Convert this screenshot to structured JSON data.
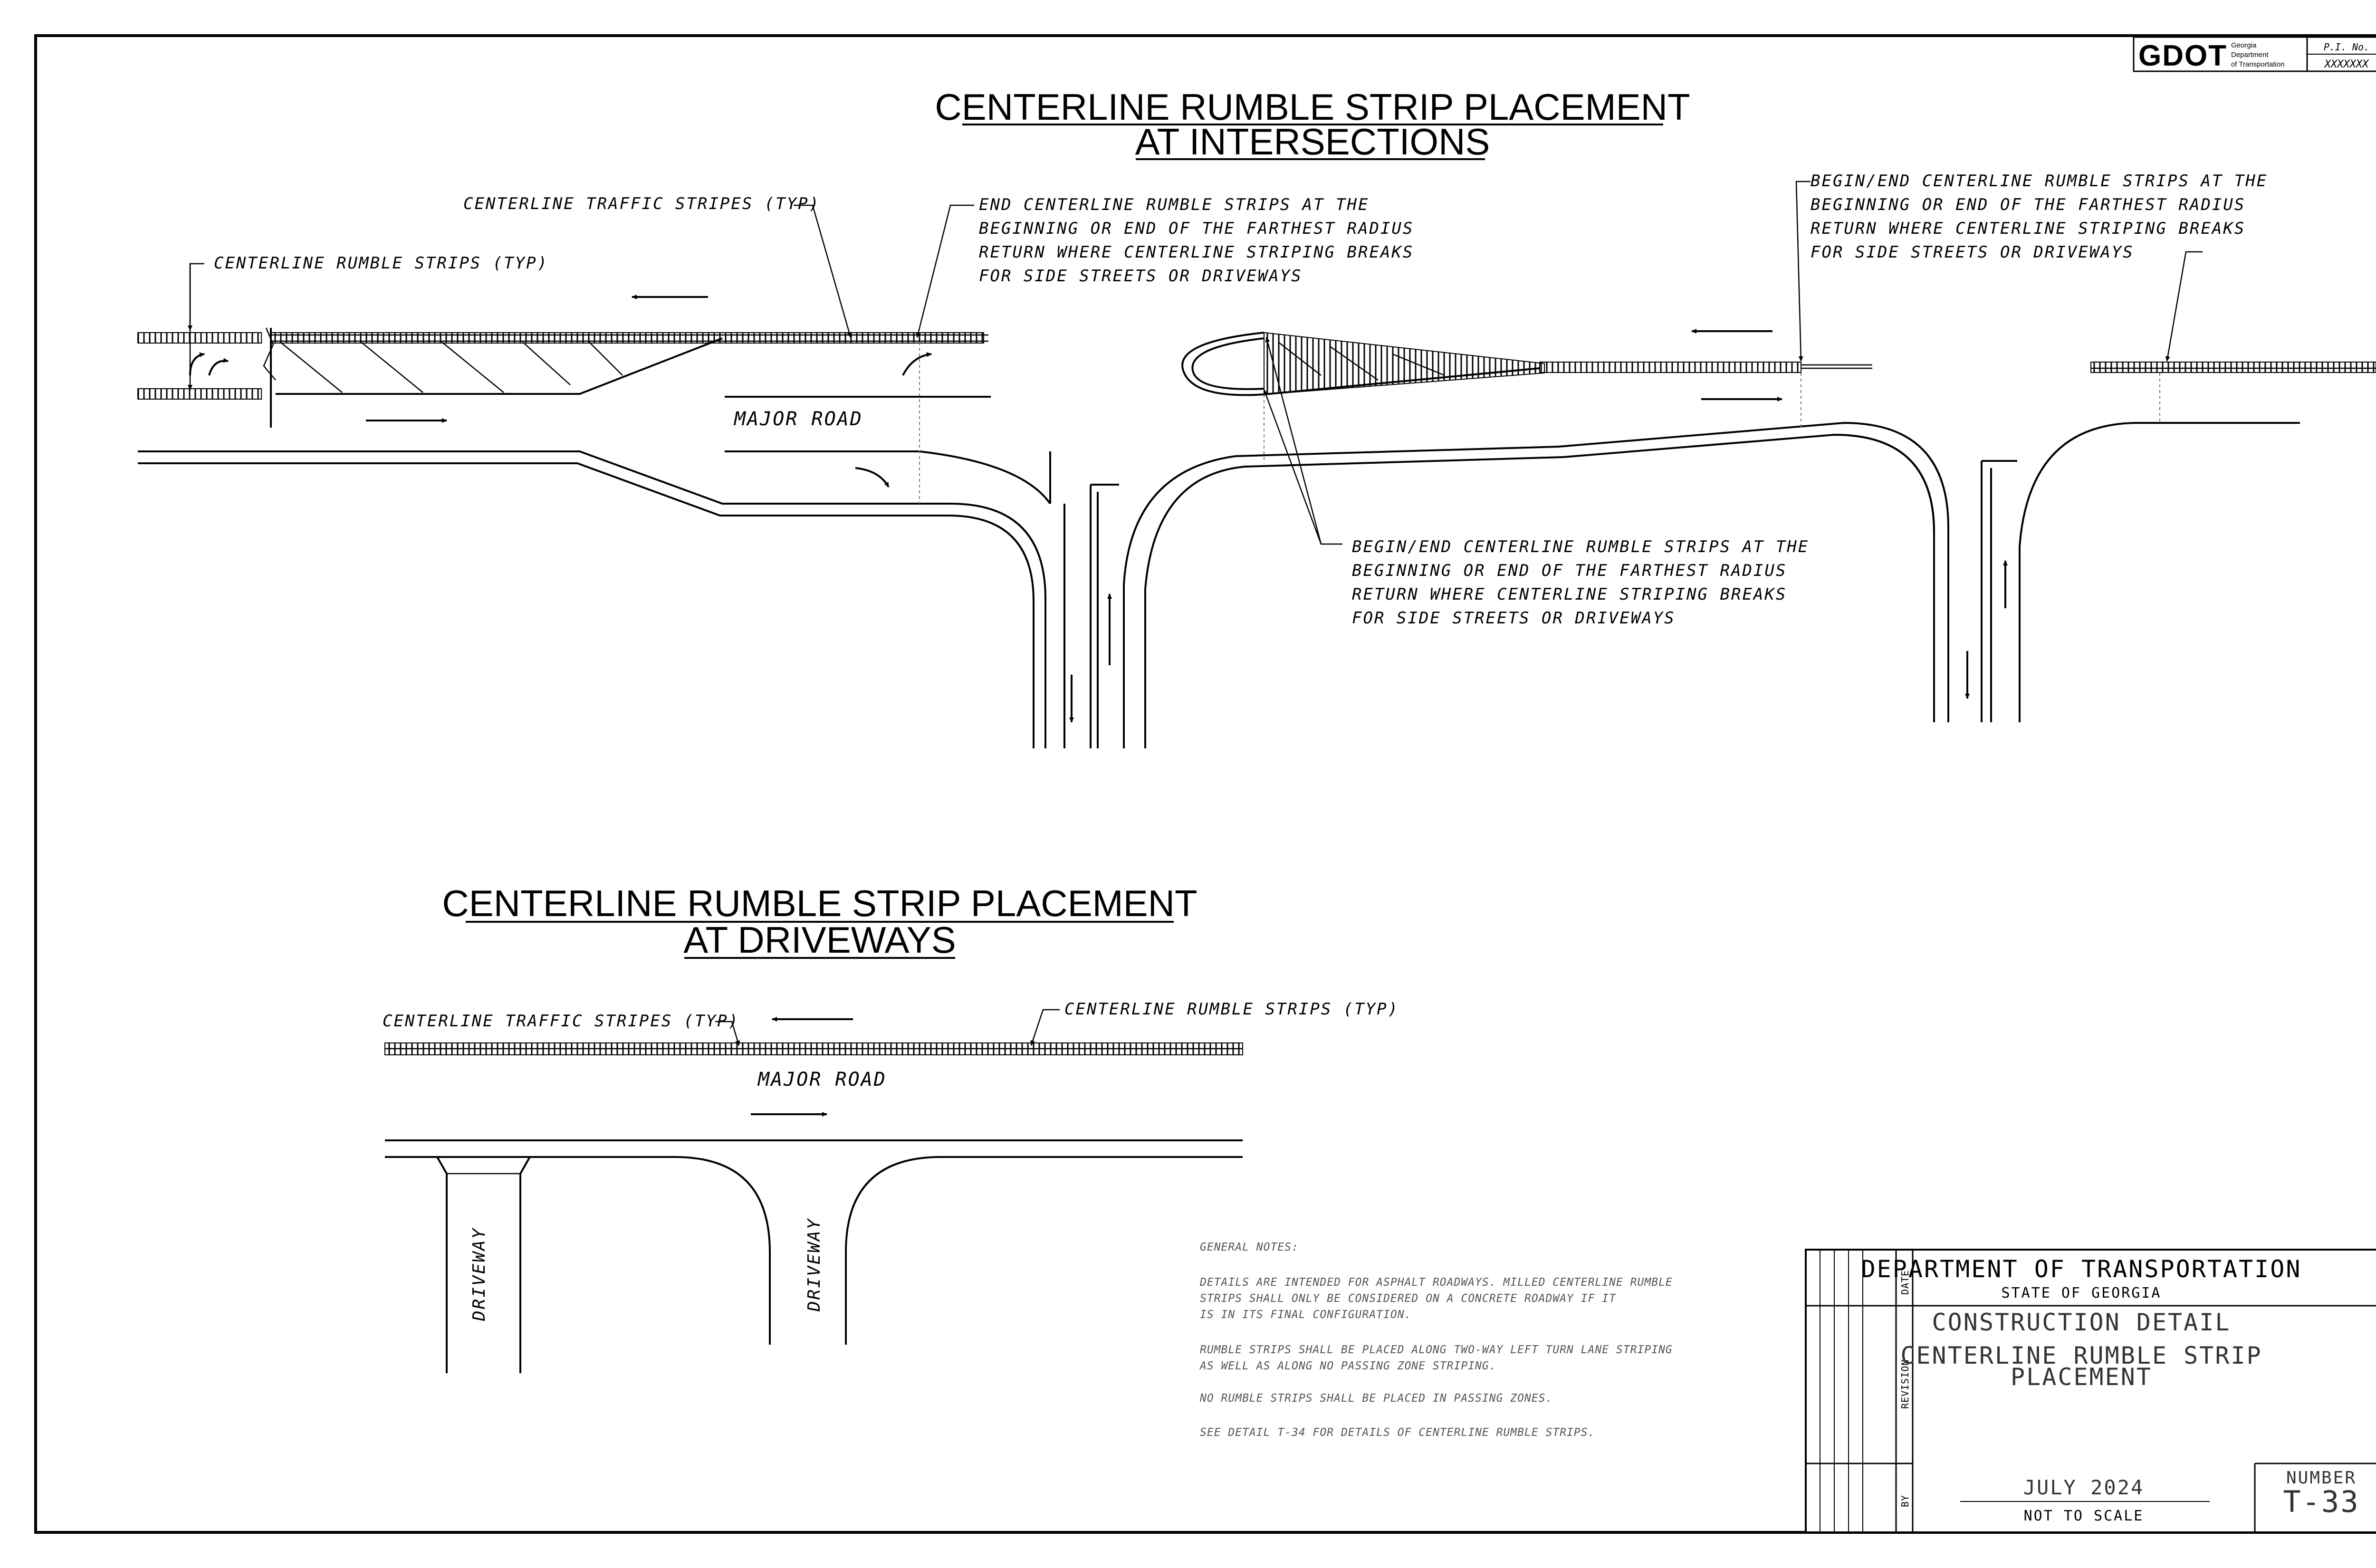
{
  "logo": {
    "text": "GDOT",
    "subtext": [
      "Georgia",
      "Department",
      "of Transportation"
    ]
  },
  "project_box": {
    "label": "P.I. No.",
    "value": "XXXXXXX"
  },
  "intersections": {
    "title_line1": "CENTERLINE RUMBLE STRIP PLACEMENT",
    "title_line2": "AT INTERSECTIONS",
    "callout_traffic_stripes": "CENTERLINE TRAFFIC STRIPES (TYP)",
    "callout_rumble_strips": "CENTERLINE RUMBLE STRIPS (TYP)",
    "callout_end": [
      "END CENTERLINE RUMBLE STRIPS AT THE",
      "BEGINNING OR END OF THE FARTHEST RADIUS",
      "RETURN WHERE CENTERLINE STRIPING BREAKS",
      "FOR SIDE STREETS OR DRIVEWAYS"
    ],
    "callout_begin_end_right": [
      "BEGIN/END CENTERLINE RUMBLE STRIPS AT THE",
      "BEGINNING OR END OF THE FARTHEST RADIUS",
      "RETURN WHERE CENTERLINE STRIPING BREAKS",
      "FOR SIDE STREETS OR DRIVEWAYS"
    ],
    "callout_begin_end_middle": [
      "BEGIN/END CENTERLINE RUMBLE STRIPS AT THE",
      "BEGINNING OR END OF THE FARTHEST RADIUS",
      "RETURN WHERE CENTERLINE STRIPING BREAKS",
      "FOR SIDE STREETS OR DRIVEWAYS"
    ],
    "road_label": "MAJOR ROAD"
  },
  "driveways": {
    "title_line1": "CENTERLINE RUMBLE STRIP PLACEMENT",
    "title_line2": "AT DRIVEWAYS",
    "callout_traffic_stripes": "CENTERLINE TRAFFIC STRIPES (TYP)",
    "callout_rumble_strips": "CENTERLINE RUMBLE STRIPS (TYP)",
    "road_label": "MAJOR ROAD",
    "driveway_label_1": "DRIVEWAY",
    "driveway_label_2": "DRIVEWAY"
  },
  "general_notes": {
    "heading": "GENERAL NOTES:",
    "note1": [
      "DETAILS ARE INTENDED FOR ASPHALT ROADWAYS. MILLED CENTERLINE RUMBLE",
      "STRIPS SHALL ONLY BE CONSIDERED ON A CONCRETE ROADWAY IF IT",
      "IS IN ITS FINAL CONFIGURATION."
    ],
    "note2": [
      "RUMBLE STRIPS SHALL BE PLACED ALONG TWO-WAY LEFT TURN LANE STRIPING",
      "AS WELL AS ALONG NO PASSING ZONE STRIPING."
    ],
    "note3": "NO RUMBLE STRIPS SHALL BE PLACED IN PASSING ZONES.",
    "note4": "SEE DETAIL T-34 FOR DETAILS OF CENTERLINE RUMBLE STRIPS."
  },
  "title_block": {
    "col_date": "DATE",
    "col_revision": "REVISION",
    "col_by": "BY",
    "agency": "DEPARTMENT OF TRANSPORTATION",
    "state": "STATE OF GEORGIA",
    "detail_type": "CONSTRUCTION DETAIL",
    "detail_title_1": "CENTERLINE RUMBLE STRIP",
    "detail_title_2": "PLACEMENT",
    "date": "JULY 2024",
    "scale": "NOT TO SCALE",
    "number_label": "NUMBER",
    "number": "T-33"
  }
}
